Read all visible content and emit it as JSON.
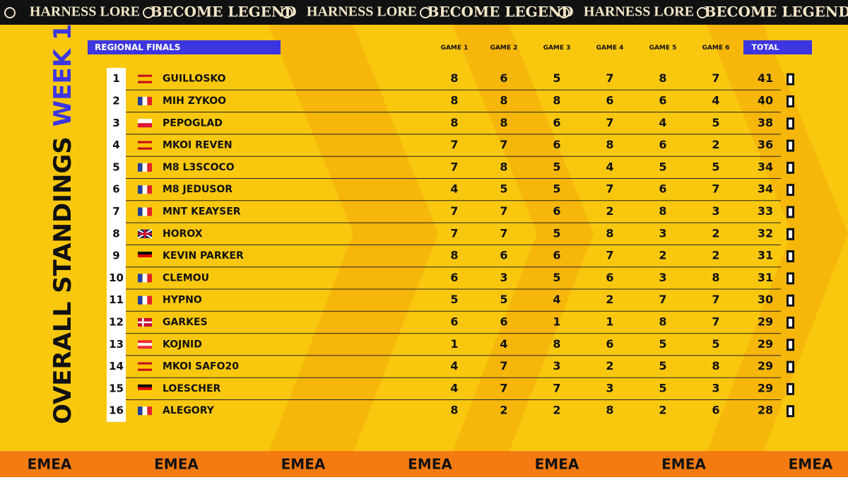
{
  "banner": [
    "HARNESS LORE",
    "BECOME LEGEND",
    "HARNESS LORE",
    "BECOME LEGEND",
    "HARNESS LORE",
    "BECOME LEGEND"
  ],
  "title": "OVERALL STANDINGS",
  "subtitle": "WEEK 1",
  "table": {
    "caption": "REGIONAL FINALS",
    "columns": [
      "GAME 1",
      "GAME 2",
      "GAME 3",
      "GAME 4",
      "GAME 5",
      "GAME 6",
      "TOTAL"
    ],
    "rows": [
      [
        1,
        "GUILLOSKO",
        8,
        6,
        5,
        7,
        8,
        7,
        41
      ],
      [
        2,
        "MIH ZYKOO",
        8,
        8,
        8,
        6,
        6,
        4,
        40
      ],
      [
        3,
        "PEPOGLAD",
        8,
        8,
        6,
        7,
        4,
        5,
        38
      ],
      [
        4,
        "MKOI REVEN",
        7,
        7,
        6,
        8,
        6,
        2,
        36
      ],
      [
        5,
        "M8 L3SCOCO",
        7,
        8,
        5,
        4,
        5,
        5,
        34
      ],
      [
        6,
        "M8 JEDUSOR",
        4,
        5,
        5,
        7,
        6,
        7,
        34
      ],
      [
        7,
        "MNT KEAYSER",
        7,
        7,
        6,
        2,
        8,
        3,
        33
      ],
      [
        8,
        "HOROX",
        7,
        7,
        5,
        8,
        3,
        2,
        32
      ],
      [
        9,
        "KEVIN PARKER",
        8,
        6,
        6,
        7,
        2,
        2,
        31
      ],
      [
        10,
        "CLEMOU",
        6,
        3,
        5,
        6,
        3,
        8,
        31
      ],
      [
        11,
        "HYPNO",
        5,
        5,
        4,
        2,
        7,
        7,
        30
      ],
      [
        12,
        "GARKES",
        6,
        6,
        1,
        1,
        8,
        7,
        29
      ],
      [
        13,
        "KOJNID",
        1,
        4,
        8,
        6,
        5,
        5,
        29
      ],
      [
        14,
        "MKOI SAFO20",
        4,
        7,
        3,
        2,
        5,
        8,
        29
      ],
      [
        15,
        "LOESCHER",
        4,
        7,
        7,
        3,
        5,
        3,
        29
      ],
      [
        16,
        "ALEGORY",
        8,
        2,
        2,
        8,
        2,
        6,
        28
      ]
    ]
  },
  "footer": [
    "EMEA",
    "EMEA",
    "EMEA",
    "EMEA",
    "EMEA",
    "EMEA",
    "EMEA"
  ]
}
